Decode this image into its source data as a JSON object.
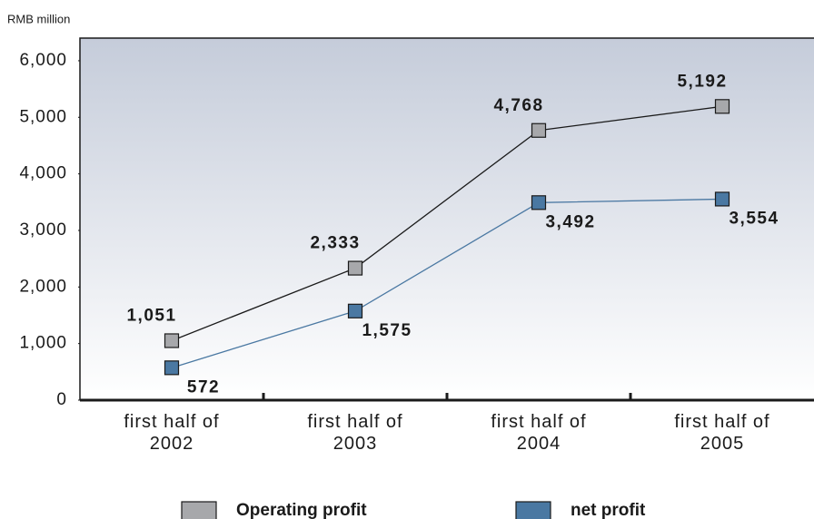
{
  "chart_data": {
    "type": "line",
    "y_axis_label": "RMB million",
    "categories": [
      "first half of 2002",
      "first half of 2003",
      "first half of 2004",
      "first half of 2005"
    ],
    "series": [
      {
        "name": "Operating profit",
        "color": "#a7a8ab",
        "line_color": "#1a1a1a",
        "values": [
          1051,
          2333,
          4768,
          5192
        ],
        "value_labels": [
          "1,051",
          "2,333",
          "4,768",
          "5,192"
        ]
      },
      {
        "name": "net profit",
        "color": "#4a78a2",
        "line_color": "#4a78a2",
        "values": [
          572,
          1575,
          3492,
          3554
        ],
        "value_labels": [
          "572",
          "1,575",
          "3,492",
          "3,554"
        ]
      }
    ],
    "ylim": [
      0,
      6400
    ],
    "yticks": [
      0,
      {
        "value": 1000,
        "label": "1,000"
      },
      {
        "value": 2000,
        "label": "2,000"
      },
      {
        "value": 3000,
        "label": "3,000"
      },
      {
        "value": 4000,
        "label": "4,000"
      },
      {
        "value": 5000,
        "label": "5,000"
      },
      {
        "value": 6000,
        "label": "6,000"
      }
    ]
  }
}
